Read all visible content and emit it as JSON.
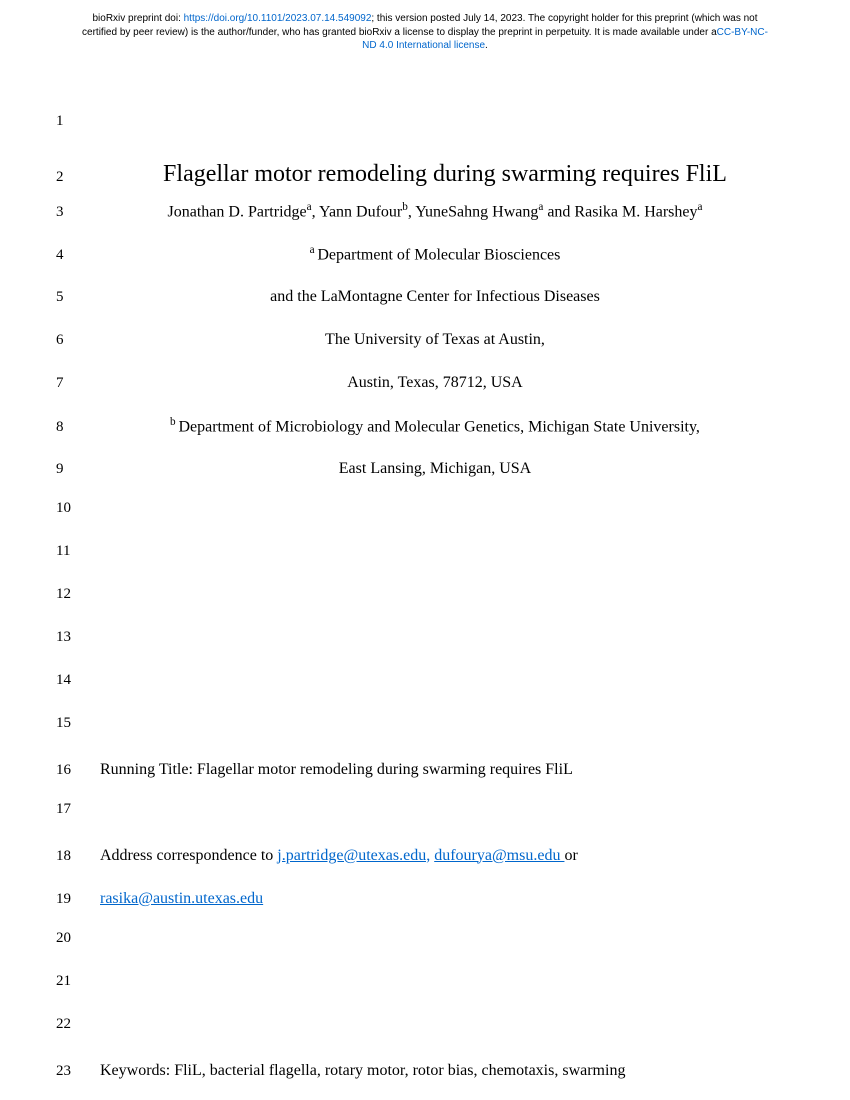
{
  "header": {
    "prefix": "bioRxiv preprint doi: ",
    "doi_url": "https://doi.org/10.1101/2023.07.14.549092",
    "middle": "; this version posted July 14, 2023. The copyright holder for this preprint (which was not certified by peer review) is the author/funder, who has granted bioRxiv a license to display the preprint in perpetuity. It is made available under a",
    "license_text": "CC-BY-NC-ND 4.0 International license",
    "suffix": "."
  },
  "lines": {
    "l1": "",
    "l2": "Flagellar motor remodeling during swarming requires FliL",
    "l3_a1": "Jonathan D. Partridge",
    "l3_s1": "a",
    "l3_a2": ", Yann Dufour",
    "l3_s2": "b",
    "l3_a3": ", YuneSahng Hwang",
    "l3_s3": "a",
    "l3_a4": " and Rasika M. Harshey",
    "l3_s4": "a",
    "l4_sup": "a ",
    "l4_text": "Department of Molecular Biosciences",
    "l5": "and the LaMontagne Center for Infectious Diseases",
    "l6": "The University of Texas at Austin,",
    "l7": "Austin, Texas, 78712, USA",
    "l8_sup": "b ",
    "l8_text": "Department of Microbiology and Molecular Genetics, Michigan State University,",
    "l9": "East Lansing, Michigan, USA",
    "l16": "Running Title: Flagellar motor remodeling during swarming requires FliL",
    "l18_prefix": "Address correspondence to ",
    "l18_email1": "j.partridge@utexas.edu,",
    "l18_sep1": "  ",
    "l18_email2": "dufourya@msu.edu ",
    "l18_suffix": "or",
    "l19_email": "rasika@austin.utexas.edu",
    "l23": "Keywords: FliL, bacterial flagella, rotary motor, rotor bias, chemotaxis, swarming"
  },
  "line_numbers": {
    "n1": "1",
    "n2": "2",
    "n3": "3",
    "n4": "4",
    "n5": "5",
    "n6": "6",
    "n7": "7",
    "n8": "8",
    "n9": "9",
    "n10": "10",
    "n11": "11",
    "n12": "12",
    "n13": "13",
    "n14": "14",
    "n15": "15",
    "n16": "16",
    "n17": "17",
    "n18": "18",
    "n19": "19",
    "n20": "20",
    "n21": "21",
    "n22": "22",
    "n23": "23"
  }
}
